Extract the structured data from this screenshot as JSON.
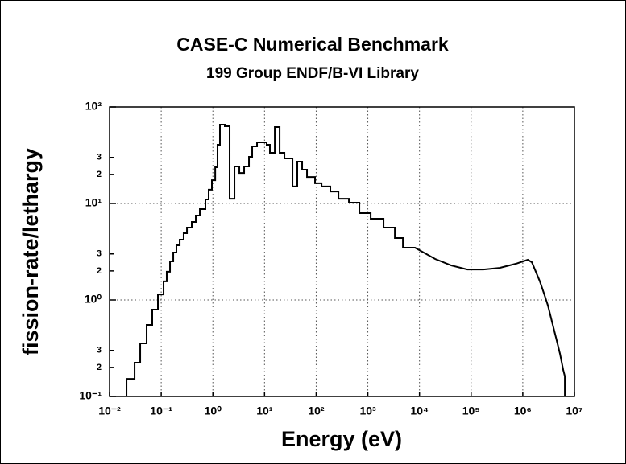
{
  "chart_data": {
    "type": "line",
    "title": "CASE-C  Numerical Benchmark",
    "subtitle": "199 Group ENDF/B-VI Library",
    "xlabel": "Energy (eV)",
    "ylabel": "fission-rate/lethargy",
    "xscale": "log",
    "yscale": "log",
    "grid": true,
    "color": "#000000",
    "xlim": [
      0.01,
      10000000
    ],
    "ylim": [
      0.1,
      100
    ],
    "xticks": [
      {
        "value": 0.01,
        "label": "10⁻²"
      },
      {
        "value": 0.1,
        "label": "10⁻¹"
      },
      {
        "value": 1,
        "label": "10⁰"
      },
      {
        "value": 10,
        "label": "10¹"
      },
      {
        "value": 100,
        "label": "10²"
      },
      {
        "value": 1000,
        "label": "10³"
      },
      {
        "value": 10000,
        "label": "10⁴"
      },
      {
        "value": 100000,
        "label": "10⁵"
      },
      {
        "value": 1000000,
        "label": "10⁶"
      },
      {
        "value": 10000000,
        "label": "10⁷"
      }
    ],
    "yticks": [
      {
        "value": 0.1,
        "label": "10⁻¹"
      },
      {
        "value": 0.2,
        "label": "2"
      },
      {
        "value": 0.3,
        "label": "3"
      },
      {
        "value": 1,
        "label": "10⁰"
      },
      2,
      3,
      {
        "value": 10,
        "label": "10¹"
      },
      {
        "value": 20,
        "label": "2"
      },
      {
        "value": 30,
        "label": "3"
      },
      {
        "value": 100,
        "label": "10²"
      }
    ],
    "x": [
      0.0213,
      0.0213,
      0.0305,
      0.0305,
      0.0392,
      0.0392,
      0.0522,
      0.0522,
      0.0671,
      0.0671,
      0.0863,
      0.0863,
      0.111,
      0.111,
      0.128,
      0.128,
      0.148,
      0.148,
      0.171,
      0.171,
      0.197,
      0.197,
      0.228,
      0.228,
      0.272,
      0.272,
      0.315,
      0.315,
      0.39,
      0.39,
      0.467,
      0.467,
      0.559,
      0.559,
      0.718,
      0.718,
      0.829,
      0.829,
      0.957,
      0.957,
      1.11,
      1.11,
      1.23,
      1.23,
      1.37,
      1.37,
      1.7,
      1.7,
      2.11,
      2.11,
      2.62,
      2.62,
      3.25,
      3.25,
      4.03,
      4.03,
      5,
      5,
      5.77,
      5.77,
      7.16,
      7.16,
      11,
      11,
      12.7,
      12.7,
      15.8,
      15.8,
      19.6,
      19.6,
      24.3,
      24.3,
      34.8,
      34.8,
      43.1,
      43.1,
      53.5,
      53.5,
      66.4,
      66.4,
      95,
      95,
      127,
      127,
      188,
      188,
      270,
      270,
      430,
      430,
      686,
      686,
      1135,
      1135,
      2015,
      2015,
      3337,
      3337,
      4780,
      4780,
      8190,
      20100,
      41200,
      84500,
      173000,
      356000,
      730000,
      1250000,
      1500000,
      1790000,
      2140000,
      2570000,
      3070000,
      3670000,
      4400000,
      5260000,
      5650000,
      6070000,
      6520000,
      6520000
    ],
    "values": [
      0.1,
      0.152,
      0.152,
      0.224,
      0.224,
      0.355,
      0.355,
      0.552,
      0.552,
      0.794,
      0.794,
      1.14,
      1.14,
      1.56,
      1.56,
      1.96,
      1.96,
      2.51,
      2.51,
      3.1,
      3.1,
      3.69,
      3.69,
      4.22,
      4.22,
      4.92,
      4.92,
      5.62,
      5.62,
      6.43,
      6.43,
      7.5,
      7.5,
      8.74,
      8.74,
      11,
      11,
      13.9,
      13.9,
      17.4,
      17.4,
      23.7,
      23.7,
      40.6,
      40.6,
      65.6,
      65.6,
      63.1,
      63.1,
      11.2,
      11.2,
      24.2,
      24.2,
      20.7,
      20.7,
      24.2,
      24.2,
      30.4,
      30.4,
      39.1,
      39.1,
      43,
      43,
      40.6,
      40.6,
      33.5,
      33.5,
      61.9,
      61.9,
      33.5,
      33.5,
      29.3,
      29.3,
      15,
      15,
      27.1,
      27.1,
      22.4,
      22.4,
      18.8,
      18.8,
      16.2,
      16.2,
      15,
      15,
      13.3,
      13.3,
      11.2,
      11.2,
      10.2,
      10.2,
      7.94,
      7.94,
      6.95,
      6.95,
      5.62,
      5.62,
      4.38,
      4.38,
      3.48,
      3.48,
      2.66,
      2.28,
      2.07,
      2.07,
      2.15,
      2.37,
      2.61,
      2.46,
      1.96,
      1.56,
      1.17,
      0.874,
      0.596,
      0.406,
      0.276,
      0.228,
      0.188,
      0.162,
      0.1
    ]
  }
}
